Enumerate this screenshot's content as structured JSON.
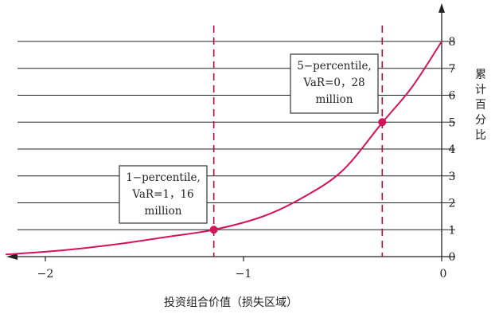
{
  "chart_data": {
    "type": "line",
    "x_axis": {
      "label": "投资组合价值（损失区域）",
      "ticks": [
        -2,
        -1,
        0
      ],
      "tick_labels": [
        "−2",
        "−1",
        "0"
      ],
      "range": [
        -2.2,
        0
      ]
    },
    "y_axis": {
      "label": "累计百分比",
      "label_chars": [
        "累",
        "计",
        "百",
        "分",
        "比"
      ],
      "ticks": [
        0,
        1,
        2,
        3,
        4,
        5,
        6,
        7,
        8
      ],
      "tick_labels": [
        "0",
        "1",
        "2",
        "3",
        "4",
        "5",
        "6",
        "7",
        "8"
      ],
      "range": [
        0,
        8
      ]
    },
    "grid": true,
    "series": [
      {
        "color": "#d4145a",
        "x": [
          -2.2,
          -2.0,
          -1.8,
          -1.6,
          -1.4,
          -1.15,
          -0.9,
          -0.7,
          -0.5,
          -0.3,
          -0.15,
          0
        ],
        "y": [
          0.08,
          0.18,
          0.32,
          0.5,
          0.72,
          1.0,
          1.5,
          2.2,
          3.2,
          4.98,
          6.3,
          8.0
        ]
      }
    ],
    "markers": [
      {
        "x": -1.15,
        "y": 1
      },
      {
        "x": -0.3,
        "y": 5
      }
    ],
    "annotations": [
      {
        "lines": [
          "1−percentile,",
          "VaR=1，16",
          "million"
        ],
        "x": -1.15,
        "y": 1
      },
      {
        "lines": [
          "5−percentile,",
          "VaR=0，28",
          "million"
        ],
        "x": -0.3,
        "y": 5
      }
    ],
    "colors": {
      "curve": "#d4145a",
      "dashed": "#b0103c",
      "grid": "#222222"
    }
  }
}
